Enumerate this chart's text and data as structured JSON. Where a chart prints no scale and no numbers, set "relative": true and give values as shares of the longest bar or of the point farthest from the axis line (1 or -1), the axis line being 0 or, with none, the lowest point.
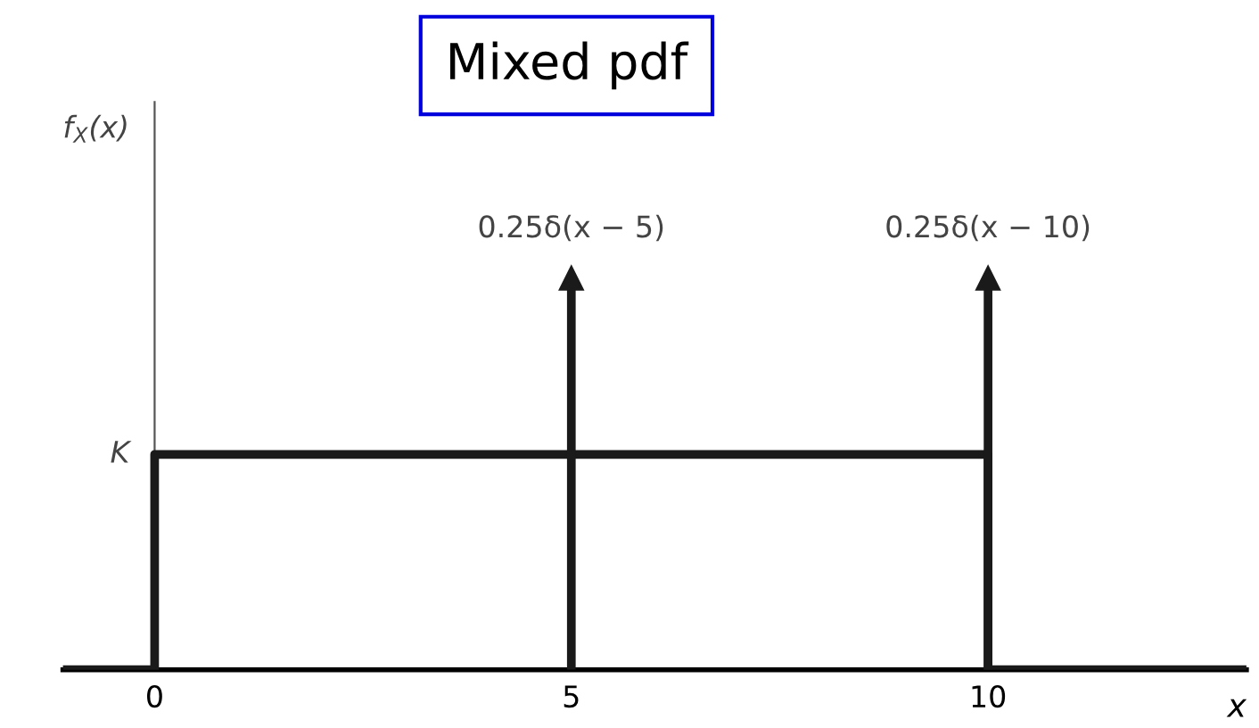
{
  "chart_data": {
    "type": "line",
    "title": "Mixed pdf",
    "xlabel": "x",
    "ylabel": "f$_{X}$(x)",
    "relative": true,
    "xlim": [
      -1.1,
      13.1
    ],
    "xticks": [
      0,
      5,
      10
    ],
    "series": [
      {
        "color": "#1a1a1a",
        "x": [
          -1.1,
          0,
          0,
          10,
          10,
          13.1
        ],
        "values": [
          0,
          0,
          0.55,
          0.55,
          0,
          0
        ],
        "marker": "none"
      },
      {
        "type": "lollipop",
        "color": "#1a1a1a",
        "x": [
          5,
          10
        ],
        "values": [
          1,
          1
        ],
        "marker": "triangle"
      }
    ],
    "annotations": [
      {
        "text": "K",
        "x": 0,
        "y": 0.55
      },
      {
        "text": "0.25δ(x − 5)",
        "x": 5,
        "y": 1
      },
      {
        "text": "0.25δ(x − 10)",
        "x": 10,
        "y": 1
      }
    ]
  }
}
